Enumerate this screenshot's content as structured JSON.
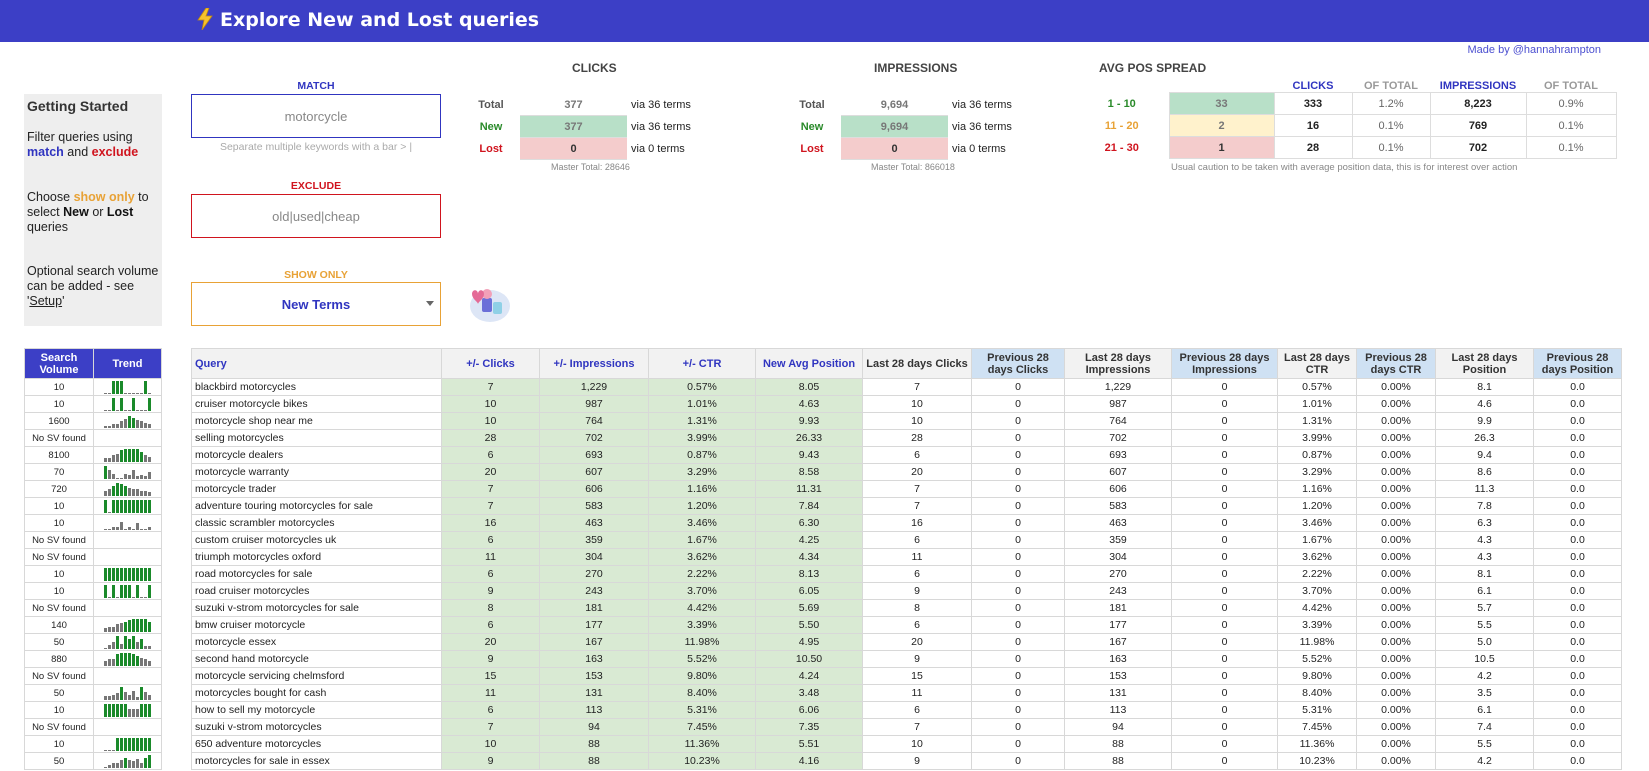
{
  "header": {
    "title": "Explore New and Lost queries",
    "icon": "lightning-icon"
  },
  "made_by": "Made by @hannahrampton",
  "getting_started": {
    "title": "Getting Started",
    "p1_a": "Filter queries using ",
    "p1_match": "match",
    "p1_and": " and ",
    "p1_exclude": "exclude",
    "p2_a": "Choose ",
    "p2_show": "show only",
    "p2_b": " to select ",
    "p2_new": "New",
    "p2_or": " or ",
    "p2_lost": "Lost",
    "p2_c": " queries",
    "p3_a": "Optional search volume can be added - see '",
    "p3_setup": "Setup",
    "p3_b": "'"
  },
  "filters": {
    "match_label": "MATCH",
    "match_value": "motorcycle",
    "match_hint": "Separate multiple keywords with a bar > |",
    "exclude_label": "EXCLUDE",
    "exclude_value": "old|used|cheap",
    "show_label": "SHOW ONLY",
    "show_value": "New Terms"
  },
  "clicks": {
    "title": "CLICKS",
    "rows": [
      {
        "label": "Total",
        "value": "377",
        "via": "via 36 terms"
      },
      {
        "label": "New",
        "value": "377",
        "via": "via 36 terms"
      },
      {
        "label": "Lost",
        "value": "0",
        "via": "via 0 terms"
      }
    ],
    "master": "Master Total: 28646"
  },
  "impressions": {
    "title": "IMPRESSIONS",
    "rows": [
      {
        "label": "Total",
        "value": "9,694",
        "via": "via 36 terms"
      },
      {
        "label": "New",
        "value": "9,694",
        "via": "via 36 terms"
      },
      {
        "label": "Lost",
        "value": "0",
        "via": "via 0 terms"
      }
    ],
    "master": "Master Total: 866018"
  },
  "avgpos": {
    "title": "AVG POS SPREAD",
    "headers": [
      "CLICKS",
      "OF TOTAL",
      "IMPRESSIONS",
      "OF TOTAL"
    ],
    "rows": [
      {
        "range": "1 - 10",
        "count": "33",
        "clicks": "333",
        "clicks_pct": "1.2%",
        "impr": "8,223",
        "impr_pct": "0.9%"
      },
      {
        "range": "11 - 20",
        "count": "2",
        "clicks": "16",
        "clicks_pct": "0.1%",
        "impr": "769",
        "impr_pct": "0.1%"
      },
      {
        "range": "21 - 30",
        "count": "1",
        "clicks": "28",
        "clicks_pct": "0.1%",
        "impr": "702",
        "impr_pct": "0.1%"
      }
    ],
    "caution": "Usual caution to be taken with average position data, this is for interest over action"
  },
  "left_table": {
    "headers": [
      "Search Volume",
      "Trend"
    ],
    "rows": [
      {
        "sv": "10",
        "trend": [
          0,
          0,
          1,
          1,
          1,
          0,
          0,
          0,
          0,
          0,
          1,
          0
        ]
      },
      {
        "sv": "10",
        "trend": [
          0,
          0,
          1,
          0,
          1,
          0,
          0,
          1,
          0,
          0,
          0,
          1
        ]
      },
      {
        "sv": "1600",
        "trend": [
          0.15,
          0.15,
          0.3,
          0.3,
          0.5,
          0.7,
          0.9,
          0.8,
          0.6,
          0.5,
          0.4,
          0.3
        ]
      },
      {
        "sv": "No SV found",
        "trend": []
      },
      {
        "sv": "8100",
        "trend": [
          0.3,
          0.3,
          0.5,
          0.6,
          0.9,
          1,
          1,
          1,
          1,
          0.8,
          0.5,
          0.4
        ]
      },
      {
        "sv": "70",
        "trend": [
          1,
          0.7,
          0.4,
          0.1,
          0,
          0.4,
          0.3,
          0.7,
          0.2,
          0.3,
          0.2,
          0.5
        ]
      },
      {
        "sv": "720",
        "trend": [
          0.4,
          0.5,
          0.8,
          1,
          0.9,
          0.8,
          0.6,
          0.5,
          0.5,
          0.4,
          0.4,
          0.3
        ]
      },
      {
        "sv": "10",
        "trend": [
          1,
          0,
          1,
          1,
          1,
          1,
          1,
          1,
          1,
          1,
          1,
          1
        ]
      },
      {
        "sv": "10",
        "trend": [
          0,
          0,
          0.2,
          0.2,
          0.6,
          0,
          0.2,
          0,
          0.5,
          0,
          0,
          0.2
        ]
      },
      {
        "sv": "No SV found",
        "trend": []
      },
      {
        "sv": "No SV found",
        "trend": []
      },
      {
        "sv": "10",
        "trend": [
          1,
          1,
          1,
          1,
          1,
          1,
          1,
          1,
          1,
          1,
          1,
          1
        ]
      },
      {
        "sv": "10",
        "trend": [
          1,
          0,
          1,
          0,
          1,
          1,
          1,
          0,
          1,
          0,
          0,
          1
        ]
      },
      {
        "sv": "No SV found",
        "trend": []
      },
      {
        "sv": "140",
        "trend": [
          0.3,
          0.4,
          0.4,
          0.6,
          0.7,
          0.8,
          0.9,
          1,
          1,
          1,
          1,
          0.8
        ]
      },
      {
        "sv": "50",
        "trend": [
          0.1,
          0.3,
          0.5,
          1,
          0.4,
          1,
          0.8,
          1,
          0.5,
          0.8,
          0.2,
          0.2
        ]
      },
      {
        "sv": "880",
        "trend": [
          0.4,
          0.5,
          0.5,
          0.9,
          1,
          1,
          1,
          0.9,
          0.8,
          0.6,
          0.5,
          0.4
        ]
      },
      {
        "sv": "No SV found",
        "trend": []
      },
      {
        "sv": "50",
        "trend": [
          0.3,
          0.3,
          0.4,
          0.5,
          1,
          0.6,
          0.4,
          0.7,
          0.2,
          1,
          0.6,
          0.4
        ]
      },
      {
        "sv": "10",
        "trend": [
          1,
          1,
          1,
          1,
          1,
          1,
          0.6,
          0.6,
          0.6,
          1,
          1,
          1
        ]
      },
      {
        "sv": "No SV found",
        "trend": []
      },
      {
        "sv": "10",
        "trend": [
          0,
          0,
          0,
          1,
          1,
          1,
          1,
          1,
          1,
          1,
          1,
          1
        ]
      },
      {
        "sv": "50",
        "trend": [
          0.1,
          0.2,
          0.4,
          0.4,
          0.6,
          0.8,
          0.6,
          0.5,
          0.7,
          0.4,
          0.8,
          1
        ]
      }
    ]
  },
  "main_table": {
    "headers": [
      "Query",
      "+/- Clicks",
      "+/- Impressions",
      "+/- CTR",
      "New Avg Position",
      "Last 28 days Clicks",
      "Previous 28 days Clicks",
      "Last 28 days Impressions",
      "Previous 28 days Impressions",
      "Last 28 days CTR",
      "Previous 28 days CTR",
      "Last 28 days Position",
      "Previous 28 days Position"
    ],
    "rows": [
      [
        "blackbird motorcycles",
        "7",
        "1,229",
        "0.57%",
        "8.05",
        "7",
        "0",
        "1,229",
        "0",
        "0.57%",
        "0.00%",
        "8.1",
        "0.0"
      ],
      [
        "cruiser motorcycle bikes",
        "10",
        "987",
        "1.01%",
        "4.63",
        "10",
        "0",
        "987",
        "0",
        "1.01%",
        "0.00%",
        "4.6",
        "0.0"
      ],
      [
        "motorcycle shop near me",
        "10",
        "764",
        "1.31%",
        "9.93",
        "10",
        "0",
        "764",
        "0",
        "1.31%",
        "0.00%",
        "9.9",
        "0.0"
      ],
      [
        "selling motorcycles",
        "28",
        "702",
        "3.99%",
        "26.33",
        "28",
        "0",
        "702",
        "0",
        "3.99%",
        "0.00%",
        "26.3",
        "0.0"
      ],
      [
        "motorcycle dealers",
        "6",
        "693",
        "0.87%",
        "9.43",
        "6",
        "0",
        "693",
        "0",
        "0.87%",
        "0.00%",
        "9.4",
        "0.0"
      ],
      [
        "motorcycle warranty",
        "20",
        "607",
        "3.29%",
        "8.58",
        "20",
        "0",
        "607",
        "0",
        "3.29%",
        "0.00%",
        "8.6",
        "0.0"
      ],
      [
        "motorcycle trader",
        "7",
        "606",
        "1.16%",
        "11.31",
        "7",
        "0",
        "606",
        "0",
        "1.16%",
        "0.00%",
        "11.3",
        "0.0"
      ],
      [
        "adventure touring motorcycles for sale",
        "7",
        "583",
        "1.20%",
        "7.84",
        "7",
        "0",
        "583",
        "0",
        "1.20%",
        "0.00%",
        "7.8",
        "0.0"
      ],
      [
        "classic scrambler motorcycles",
        "16",
        "463",
        "3.46%",
        "6.30",
        "16",
        "0",
        "463",
        "0",
        "3.46%",
        "0.00%",
        "6.3",
        "0.0"
      ],
      [
        "custom cruiser motorcycles uk",
        "6",
        "359",
        "1.67%",
        "4.25",
        "6",
        "0",
        "359",
        "0",
        "1.67%",
        "0.00%",
        "4.3",
        "0.0"
      ],
      [
        "triumph motorcycles oxford",
        "11",
        "304",
        "3.62%",
        "4.34",
        "11",
        "0",
        "304",
        "0",
        "3.62%",
        "0.00%",
        "4.3",
        "0.0"
      ],
      [
        "road motorcycles for sale",
        "6",
        "270",
        "2.22%",
        "8.13",
        "6",
        "0",
        "270",
        "0",
        "2.22%",
        "0.00%",
        "8.1",
        "0.0"
      ],
      [
        "road cruiser motorcycles",
        "9",
        "243",
        "3.70%",
        "6.05",
        "9",
        "0",
        "243",
        "0",
        "3.70%",
        "0.00%",
        "6.1",
        "0.0"
      ],
      [
        "suzuki v-strom motorcycles for sale",
        "8",
        "181",
        "4.42%",
        "5.69",
        "8",
        "0",
        "181",
        "0",
        "4.42%",
        "0.00%",
        "5.7",
        "0.0"
      ],
      [
        "bmw cruiser motorcycle",
        "6",
        "177",
        "3.39%",
        "5.50",
        "6",
        "0",
        "177",
        "0",
        "3.39%",
        "0.00%",
        "5.5",
        "0.0"
      ],
      [
        "motorcycle essex",
        "20",
        "167",
        "11.98%",
        "4.95",
        "20",
        "0",
        "167",
        "0",
        "11.98%",
        "0.00%",
        "5.0",
        "0.0"
      ],
      [
        "second hand motorcycle",
        "9",
        "163",
        "5.52%",
        "10.50",
        "9",
        "0",
        "163",
        "0",
        "5.52%",
        "0.00%",
        "10.5",
        "0.0"
      ],
      [
        "motorcycle servicing chelmsford",
        "15",
        "153",
        "9.80%",
        "4.24",
        "15",
        "0",
        "153",
        "0",
        "9.80%",
        "0.00%",
        "4.2",
        "0.0"
      ],
      [
        "motorcycles bought for cash",
        "11",
        "131",
        "8.40%",
        "3.48",
        "11",
        "0",
        "131",
        "0",
        "8.40%",
        "0.00%",
        "3.5",
        "0.0"
      ],
      [
        "how to sell my motorcycle",
        "6",
        "113",
        "5.31%",
        "6.06",
        "6",
        "0",
        "113",
        "0",
        "5.31%",
        "0.00%",
        "6.1",
        "0.0"
      ],
      [
        "suzuki v-strom motorcycles",
        "7",
        "94",
        "7.45%",
        "7.35",
        "7",
        "0",
        "94",
        "0",
        "7.45%",
        "0.00%",
        "7.4",
        "0.0"
      ],
      [
        "650 adventure motorcycles",
        "10",
        "88",
        "11.36%",
        "5.51",
        "10",
        "0",
        "88",
        "0",
        "11.36%",
        "0.00%",
        "5.5",
        "0.0"
      ],
      [
        "motorcycles for sale in essex",
        "9",
        "88",
        "10.23%",
        "4.16",
        "9",
        "0",
        "88",
        "0",
        "10.23%",
        "0.00%",
        "4.2",
        "0.0"
      ]
    ]
  },
  "colors": {
    "brand": "#3c3fc6",
    "green": "#d9ead3",
    "red": "#f4cccc",
    "yellow": "#fff2cc",
    "lightblue": "#cfe1f3",
    "spark": "#1a8a2a"
  }
}
